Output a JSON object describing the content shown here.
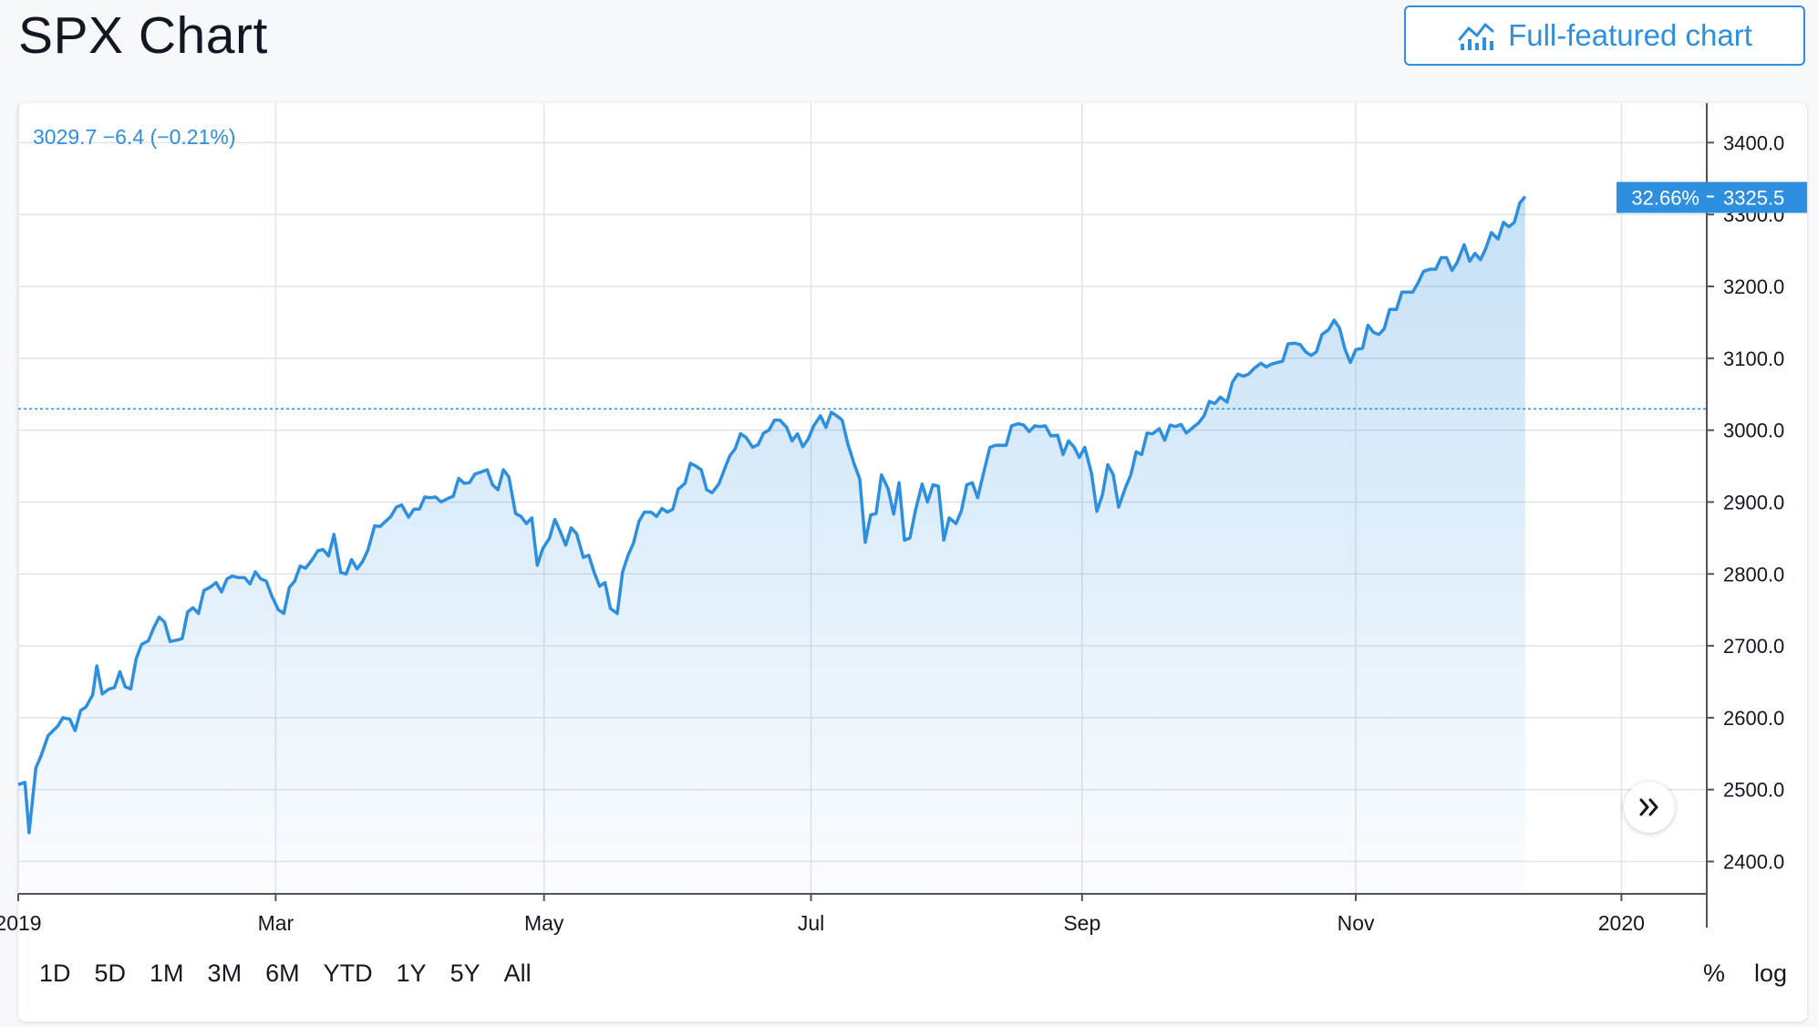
{
  "header": {
    "title": "SPX Chart",
    "full_chart_label": "Full-featured chart"
  },
  "legend": {
    "readout": "3029.7  −6.4 (−0.21%)"
  },
  "last_value": {
    "percent": "32.66%",
    "price": "3325.5"
  },
  "icons": {
    "full_chart": "chart-line-icon",
    "scroll_right": "double-chevron-right-icon"
  },
  "ranges": [
    "1D",
    "5D",
    "1M",
    "3M",
    "6M",
    "YTD",
    "1Y",
    "5Y",
    "All"
  ],
  "scale_buttons": {
    "percent": "%",
    "log": "log"
  },
  "colors": {
    "line": "#2d8fde",
    "accent": "#2d8fde",
    "text": "#131722",
    "grid": "#e1e3ea"
  },
  "chart_data": {
    "type": "area",
    "title": "",
    "xlabel": "",
    "ylabel": "",
    "ylim": [
      2355,
      3455
    ],
    "xlim": [
      0,
      12.46
    ],
    "x_axis": {
      "ticks": [
        {
          "label": "2019",
          "x": 0
        },
        {
          "label": "Mar",
          "x": 1.9
        },
        {
          "label": "May",
          "x": 3.88
        },
        {
          "label": "Jul",
          "x": 5.85
        },
        {
          "label": "Sep",
          "x": 7.85
        },
        {
          "label": "Nov",
          "x": 9.87
        },
        {
          "label": "2020",
          "x": 11.83
        }
      ]
    },
    "y_axis": {
      "ticks": [
        "2400.0",
        "2500.0",
        "2600.0",
        "2700.0",
        "2800.0",
        "2900.0",
        "3000.0",
        "3100.0",
        "3200.0",
        "3300.0",
        "3400.0"
      ]
    },
    "reference_line": 3029.7,
    "last_marker": {
      "percent": "32.66%",
      "value": "3325.5"
    },
    "grid": true,
    "series": [
      {
        "points": [
          [
            0.0,
            2507
          ],
          [
            0.05,
            2510
          ],
          [
            0.08,
            2440
          ],
          [
            0.13,
            2530
          ],
          [
            0.17,
            2548
          ],
          [
            0.22,
            2575
          ],
          [
            0.29,
            2588
          ],
          [
            0.33,
            2600
          ],
          [
            0.38,
            2598
          ],
          [
            0.42,
            2582
          ],
          [
            0.46,
            2610
          ],
          [
            0.5,
            2615
          ],
          [
            0.55,
            2632
          ],
          [
            0.58,
            2672
          ],
          [
            0.62,
            2633
          ],
          [
            0.67,
            2640
          ],
          [
            0.71,
            2642
          ],
          [
            0.75,
            2664
          ],
          [
            0.79,
            2643
          ],
          [
            0.83,
            2640
          ],
          [
            0.87,
            2682
          ],
          [
            0.91,
            2702
          ],
          [
            0.96,
            2707
          ],
          [
            1.0,
            2725
          ],
          [
            1.04,
            2740
          ],
          [
            1.08,
            2733
          ],
          [
            1.12,
            2706
          ],
          [
            1.17,
            2708
          ],
          [
            1.21,
            2710
          ],
          [
            1.25,
            2747
          ],
          [
            1.29,
            2753
          ],
          [
            1.33,
            2745
          ],
          [
            1.37,
            2777
          ],
          [
            1.42,
            2782
          ],
          [
            1.46,
            2788
          ],
          [
            1.5,
            2775
          ],
          [
            1.54,
            2793
          ],
          [
            1.58,
            2797
          ],
          [
            1.62,
            2795
          ],
          [
            1.67,
            2795
          ],
          [
            1.71,
            2786
          ],
          [
            1.75,
            2803
          ],
          [
            1.79,
            2793
          ],
          [
            1.83,
            2790
          ],
          [
            1.87,
            2770
          ],
          [
            1.92,
            2750
          ],
          [
            1.96,
            2745
          ],
          [
            2.0,
            2781
          ],
          [
            2.04,
            2790
          ],
          [
            2.08,
            2811
          ],
          [
            2.12,
            2808
          ],
          [
            2.17,
            2820
          ],
          [
            2.21,
            2832
          ],
          [
            2.25,
            2834
          ],
          [
            2.29,
            2825
          ],
          [
            2.33,
            2855
          ],
          [
            2.38,
            2802
          ],
          [
            2.42,
            2800
          ],
          [
            2.46,
            2820
          ],
          [
            2.5,
            2807
          ],
          [
            2.54,
            2817
          ],
          [
            2.58,
            2833
          ],
          [
            2.63,
            2867
          ],
          [
            2.67,
            2866
          ],
          [
            2.71,
            2873
          ],
          [
            2.75,
            2880
          ],
          [
            2.79,
            2893
          ],
          [
            2.83,
            2896
          ],
          [
            2.88,
            2879
          ],
          [
            2.92,
            2890
          ],
          [
            2.96,
            2890
          ],
          [
            3.0,
            2907
          ],
          [
            3.04,
            2906
          ],
          [
            3.08,
            2907
          ],
          [
            3.12,
            2900
          ],
          [
            3.17,
            2905
          ],
          [
            3.21,
            2908
          ],
          [
            3.25,
            2933
          ],
          [
            3.29,
            2926
          ],
          [
            3.33,
            2927
          ],
          [
            3.37,
            2939
          ],
          [
            3.42,
            2942
          ],
          [
            3.46,
            2945
          ],
          [
            3.5,
            2924
          ],
          [
            3.54,
            2917
          ],
          [
            3.58,
            2945
          ],
          [
            3.62,
            2935
          ],
          [
            3.67,
            2884
          ],
          [
            3.71,
            2880
          ],
          [
            3.75,
            2870
          ],
          [
            3.79,
            2878
          ],
          [
            3.83,
            2812
          ],
          [
            3.87,
            2835
          ],
          [
            3.92,
            2850
          ],
          [
            3.96,
            2876
          ],
          [
            4.0,
            2859
          ],
          [
            4.04,
            2840
          ],
          [
            4.08,
            2864
          ],
          [
            4.12,
            2856
          ],
          [
            4.17,
            2823
          ],
          [
            4.21,
            2826
          ],
          [
            4.25,
            2802
          ],
          [
            4.29,
            2783
          ],
          [
            4.33,
            2788
          ],
          [
            4.37,
            2752
          ],
          [
            4.42,
            2745
          ],
          [
            4.46,
            2803
          ],
          [
            4.5,
            2826
          ],
          [
            4.54,
            2843
          ],
          [
            4.58,
            2873
          ],
          [
            4.62,
            2886
          ],
          [
            4.67,
            2886
          ],
          [
            4.71,
            2880
          ],
          [
            4.75,
            2891
          ],
          [
            4.79,
            2886
          ],
          [
            4.83,
            2890
          ],
          [
            4.87,
            2918
          ],
          [
            4.92,
            2926
          ],
          [
            4.96,
            2954
          ],
          [
            5.0,
            2950
          ],
          [
            5.04,
            2945
          ],
          [
            5.08,
            2917
          ],
          [
            5.12,
            2913
          ],
          [
            5.17,
            2925
          ],
          [
            5.21,
            2945
          ],
          [
            5.25,
            2964
          ],
          [
            5.29,
            2974
          ],
          [
            5.33,
            2995
          ],
          [
            5.37,
            2990
          ],
          [
            5.42,
            2976
          ],
          [
            5.46,
            2980
          ],
          [
            5.5,
            2996
          ],
          [
            5.54,
            3000
          ],
          [
            5.58,
            3014
          ],
          [
            5.62,
            3014
          ],
          [
            5.67,
            3004
          ],
          [
            5.71,
            2985
          ],
          [
            5.75,
            2995
          ],
          [
            5.79,
            2977
          ],
          [
            5.83,
            2988
          ],
          [
            5.87,
            3006
          ],
          [
            5.92,
            3020
          ],
          [
            5.96,
            3004
          ],
          [
            6.0,
            3025
          ],
          [
            6.04,
            3020
          ],
          [
            6.08,
            3014
          ],
          [
            6.12,
            2982
          ],
          [
            6.17,
            2952
          ],
          [
            6.21,
            2932
          ],
          [
            6.25,
            2844
          ],
          [
            6.29,
            2882
          ],
          [
            6.33,
            2884
          ],
          [
            6.37,
            2938
          ],
          [
            6.42,
            2918
          ],
          [
            6.46,
            2883
          ],
          [
            6.5,
            2927
          ],
          [
            6.54,
            2847
          ],
          [
            6.58,
            2850
          ],
          [
            6.62,
            2888
          ],
          [
            6.67,
            2925
          ],
          [
            6.71,
            2900
          ],
          [
            6.75,
            2924
          ],
          [
            6.79,
            2922
          ],
          [
            6.83,
            2847
          ],
          [
            6.87,
            2878
          ],
          [
            6.92,
            2870
          ],
          [
            6.96,
            2888
          ],
          [
            7.0,
            2924
          ],
          [
            7.04,
            2927
          ],
          [
            7.08,
            2906
          ],
          [
            7.12,
            2938
          ],
          [
            7.17,
            2976
          ],
          [
            7.21,
            2979
          ],
          [
            7.25,
            2979
          ],
          [
            7.29,
            2979
          ],
          [
            7.33,
            3006
          ],
          [
            7.38,
            3009
          ],
          [
            7.42,
            3007
          ],
          [
            7.46,
            2998
          ],
          [
            7.5,
            3006
          ],
          [
            7.54,
            3005
          ],
          [
            7.58,
            3006
          ],
          [
            7.62,
            2992
          ],
          [
            7.67,
            2993
          ],
          [
            7.71,
            2966
          ],
          [
            7.75,
            2985
          ],
          [
            7.79,
            2977
          ],
          [
            7.83,
            2962
          ],
          [
            7.87,
            2976
          ],
          [
            7.92,
            2940
          ],
          [
            7.96,
            2887
          ],
          [
            8.0,
            2910
          ],
          [
            8.04,
            2952
          ],
          [
            8.08,
            2938
          ],
          [
            8.12,
            2893
          ],
          [
            8.17,
            2920
          ],
          [
            8.21,
            2938
          ],
          [
            8.25,
            2970
          ],
          [
            8.29,
            2966
          ],
          [
            8.33,
            2996
          ],
          [
            8.37,
            2995
          ],
          [
            8.42,
            3002
          ],
          [
            8.46,
            2986
          ],
          [
            8.5,
            3007
          ],
          [
            8.54,
            3005
          ],
          [
            8.58,
            3008
          ],
          [
            8.62,
            2996
          ],
          [
            8.67,
            3004
          ],
          [
            8.71,
            3010
          ],
          [
            8.75,
            3020
          ],
          [
            8.79,
            3040
          ],
          [
            8.83,
            3037
          ],
          [
            8.87,
            3046
          ],
          [
            8.92,
            3039
          ],
          [
            8.96,
            3067
          ],
          [
            9.0,
            3078
          ],
          [
            9.04,
            3075
          ],
          [
            9.08,
            3078
          ],
          [
            9.12,
            3086
          ],
          [
            9.17,
            3093
          ],
          [
            9.21,
            3088
          ],
          [
            9.25,
            3092
          ],
          [
            9.29,
            3094
          ],
          [
            9.33,
            3096
          ],
          [
            9.37,
            3120
          ],
          [
            9.42,
            3121
          ],
          [
            9.46,
            3119
          ],
          [
            9.5,
            3109
          ],
          [
            9.54,
            3104
          ],
          [
            9.58,
            3109
          ],
          [
            9.62,
            3133
          ],
          [
            9.67,
            3140
          ],
          [
            9.71,
            3153
          ],
          [
            9.75,
            3142
          ],
          [
            9.79,
            3113
          ],
          [
            9.83,
            3094
          ],
          [
            9.87,
            3112
          ],
          [
            9.92,
            3114
          ],
          [
            9.96,
            3146
          ],
          [
            10.0,
            3136
          ],
          [
            10.04,
            3133
          ],
          [
            10.08,
            3141
          ],
          [
            10.12,
            3168
          ],
          [
            10.17,
            3168
          ],
          [
            10.21,
            3192
          ],
          [
            10.25,
            3192
          ],
          [
            10.29,
            3192
          ],
          [
            10.33,
            3205
          ],
          [
            10.37,
            3221
          ],
          [
            10.42,
            3224
          ],
          [
            10.46,
            3224
          ],
          [
            10.5,
            3240
          ],
          [
            10.54,
            3240
          ],
          [
            10.58,
            3222
          ],
          [
            10.62,
            3234
          ],
          [
            10.67,
            3258
          ],
          [
            10.71,
            3235
          ],
          [
            10.75,
            3246
          ],
          [
            10.79,
            3237
          ],
          [
            10.83,
            3253
          ],
          [
            10.87,
            3275
          ],
          [
            10.92,
            3266
          ],
          [
            10.96,
            3289
          ],
          [
            11.0,
            3283
          ],
          [
            11.04,
            3289
          ],
          [
            11.08,
            3316
          ],
          [
            11.12,
            3325
          ]
        ]
      }
    ]
  }
}
